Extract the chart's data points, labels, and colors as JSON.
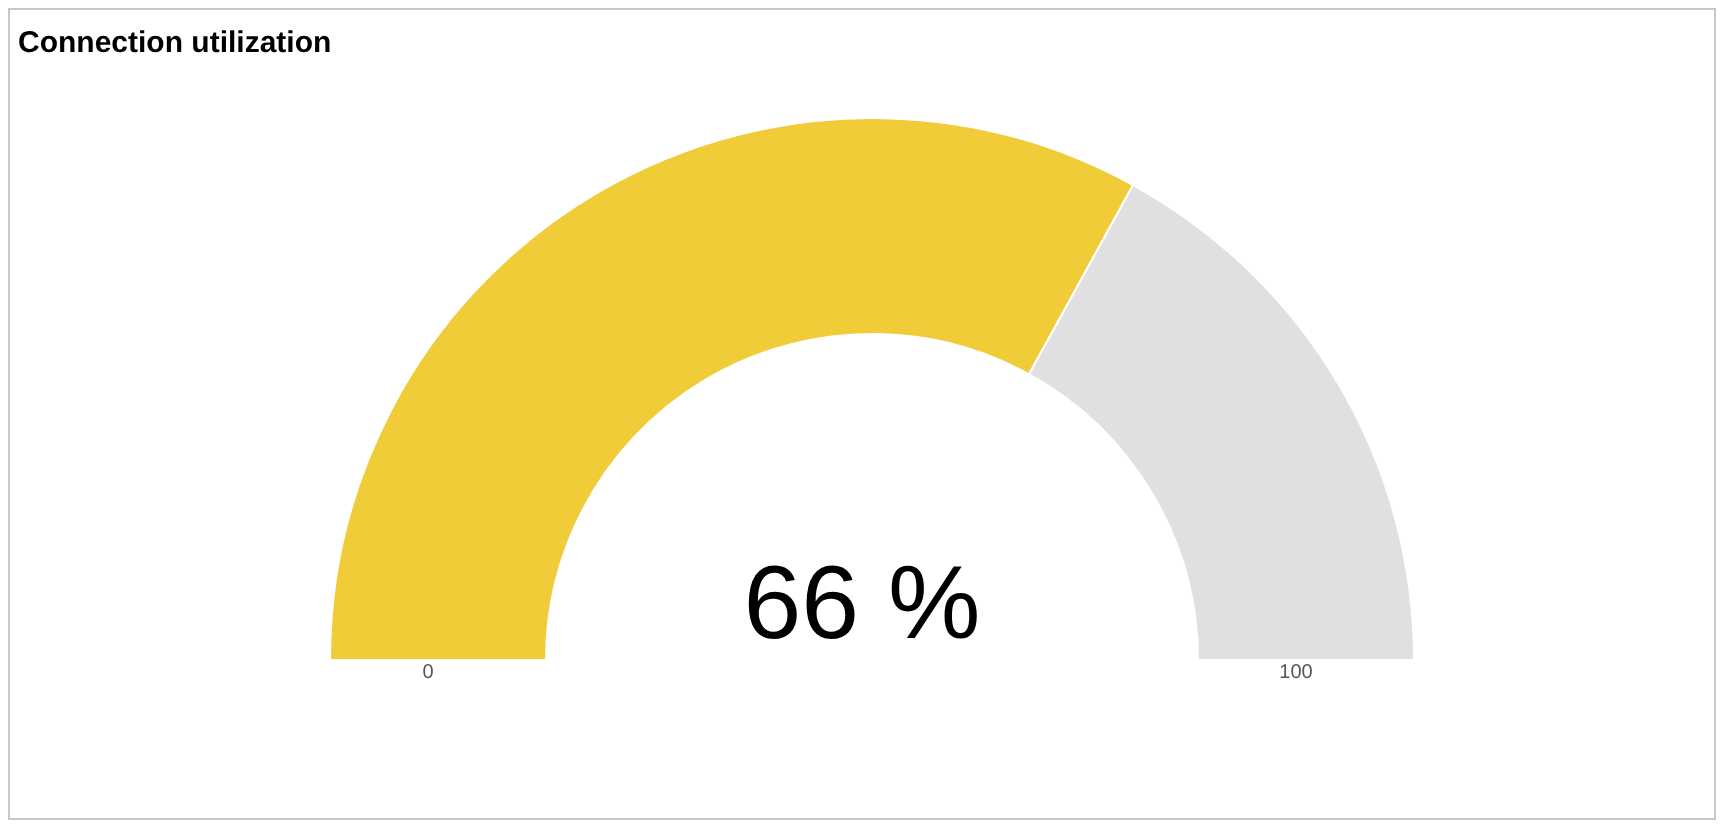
{
  "chart_data": {
    "type": "donut",
    "title": "Connection utilization",
    "categories": [
      null,
      null
    ],
    "values": [
      66,
      34
    ],
    "colors": [
      "#f0cc38",
      "#e0e0e0"
    ],
    "value_labels": [
      "66 %",
      null
    ],
    "annotations": [
      "0",
      "100"
    ],
    "legend": false
  }
}
